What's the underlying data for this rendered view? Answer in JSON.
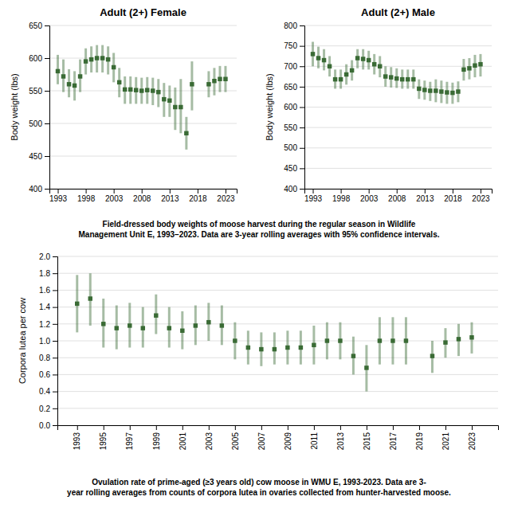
{
  "chart_data": [
    {
      "type": "scatter",
      "title": "Adult (2+) Female",
      "y_label": "Body weight (lbs)",
      "x": [
        1993,
        1994,
        1995,
        1996,
        1997,
        1998,
        1999,
        2000,
        2001,
        2002,
        2003,
        2004,
        2005,
        2006,
        2007,
        2008,
        2009,
        2010,
        2011,
        2012,
        2013,
        2014,
        2015,
        2016,
        2017,
        2020,
        2021,
        2022,
        2023
      ],
      "series": [
        {
          "color": "#3a6b35",
          "marker": "square",
          "values": [
            580,
            572,
            560,
            558,
            572,
            595,
            598,
            600,
            600,
            598,
            586,
            563,
            552,
            552,
            551,
            550,
            551,
            550,
            548,
            537,
            535,
            525,
            525,
            485,
            560,
            560,
            565,
            568,
            568
          ],
          "lo": [
            560,
            548,
            540,
            535,
            548,
            575,
            578,
            578,
            578,
            575,
            563,
            540,
            530,
            530,
            530,
            530,
            530,
            528,
            525,
            510,
            510,
            490,
            485,
            460,
            520,
            540,
            543,
            548,
            548
          ],
          "hi": [
            605,
            598,
            583,
            580,
            598,
            615,
            618,
            620,
            620,
            618,
            608,
            585,
            572,
            572,
            571,
            570,
            571,
            570,
            568,
            562,
            558,
            555,
            568,
            510,
            595,
            580,
            585,
            588,
            588
          ]
        }
      ],
      "xlim": [
        1991.5,
        2025
      ],
      "xticks": [
        1993,
        1998,
        2003,
        2008,
        2013,
        2018,
        2023
      ],
      "ylim": [
        400,
        650
      ],
      "yticks": [
        400,
        450,
        500,
        550,
        600,
        650
      ],
      "grid": true
    },
    {
      "type": "scatter",
      "title": "Adult (2+) Male",
      "y_label": "Body weight (lbs)",
      "x": [
        1993,
        1994,
        1995,
        1996,
        1997,
        1998,
        1999,
        2000,
        2001,
        2002,
        2003,
        2004,
        2005,
        2006,
        2007,
        2008,
        2009,
        2010,
        2011,
        2012,
        2013,
        2014,
        2015,
        2016,
        2017,
        2018,
        2019,
        2020,
        2021,
        2022,
        2023
      ],
      "series": [
        {
          "color": "#3a6b35",
          "marker": "square",
          "values": [
            730,
            720,
            715,
            700,
            668,
            668,
            680,
            690,
            720,
            718,
            715,
            705,
            700,
            675,
            673,
            670,
            668,
            668,
            668,
            645,
            642,
            640,
            640,
            638,
            636,
            635,
            638,
            692,
            695,
            702,
            705
          ],
          "lo": [
            700,
            695,
            690,
            675,
            645,
            645,
            655,
            665,
            695,
            692,
            692,
            680,
            673,
            650,
            648,
            647,
            645,
            645,
            645,
            620,
            618,
            615,
            612,
            610,
            608,
            608,
            612,
            665,
            668,
            673,
            675
          ],
          "hi": [
            760,
            748,
            742,
            725,
            692,
            692,
            705,
            715,
            742,
            742,
            738,
            730,
            725,
            700,
            698,
            695,
            692,
            692,
            692,
            668,
            665,
            662,
            668,
            665,
            662,
            660,
            663,
            718,
            720,
            728,
            730
          ]
        }
      ],
      "xlim": [
        1991.5,
        2025
      ],
      "xticks": [
        1993,
        1998,
        2003,
        2008,
        2013,
        2018,
        2023
      ],
      "ylim": [
        400,
        800
      ],
      "yticks": [
        400,
        450,
        500,
        550,
        600,
        650,
        700,
        750,
        800
      ],
      "grid": true,
      "annotations": [
        "Field-dressed body weights of moose harvest during the regular season in Wildlife\nManagement Unit E, 1993–2023. Data are 3-year rolling averages with 95% confidence intervals."
      ]
    },
    {
      "type": "scatter",
      "y_label": "Corpora lutea per cow",
      "x": [
        1993,
        1994,
        1995,
        1996,
        1997,
        1998,
        1999,
        2000,
        2001,
        2002,
        2003,
        2004,
        2005,
        2006,
        2007,
        2008,
        2009,
        2010,
        2011,
        2012,
        2013,
        2014,
        2015,
        2016,
        2017,
        2018,
        2020,
        2021,
        2022,
        2023
      ],
      "series": [
        {
          "color": "#3a6b35",
          "marker": "square",
          "values": [
            1.44,
            1.5,
            1.2,
            1.15,
            1.18,
            1.15,
            1.3,
            1.15,
            1.12,
            1.18,
            1.22,
            1.18,
            1.0,
            0.92,
            0.9,
            0.9,
            0.92,
            0.92,
            0.95,
            1.0,
            1.0,
            0.82,
            0.68,
            1.0,
            1.0,
            1.0,
            0.82,
            0.98,
            1.02,
            1.04
          ],
          "lo": [
            1.1,
            1.18,
            0.92,
            0.9,
            0.92,
            0.92,
            1.08,
            0.92,
            0.9,
            0.95,
            1.0,
            0.95,
            0.78,
            0.72,
            0.7,
            0.72,
            0.72,
            0.72,
            0.72,
            0.78,
            0.78,
            0.6,
            0.4,
            0.72,
            0.72,
            0.72,
            0.62,
            0.8,
            0.82,
            0.85
          ],
          "hi": [
            1.78,
            1.8,
            1.5,
            1.42,
            1.45,
            1.4,
            1.55,
            1.4,
            1.35,
            1.42,
            1.45,
            1.42,
            1.22,
            1.12,
            1.1,
            1.1,
            1.12,
            1.12,
            1.18,
            1.22,
            1.22,
            1.05,
            0.95,
            1.28,
            1.28,
            1.28,
            1.0,
            1.15,
            1.2,
            1.22
          ]
        }
      ],
      "xlim": [
        1991.5,
        2025
      ],
      "xticks": [
        1993,
        1995,
        1997,
        1999,
        2001,
        2003,
        2005,
        2007,
        2009,
        2011,
        2013,
        2015,
        2017,
        2019,
        2021,
        2023
      ],
      "ylim": [
        0.0,
        2.0
      ],
      "yticks": [
        {
          "value": 0.0,
          "label": "0.0"
        },
        0.2,
        0.4,
        0.6,
        0.8,
        {
          "value": 1.0,
          "label": "1.0"
        },
        1.2,
        1.4,
        1.6,
        1.8,
        {
          "value": 2.0,
          "label": "2.0"
        }
      ],
      "grid": true,
      "annotations": [
        "Ovulation rate of prime-aged (≥3 years old) cow moose in WMU E, 1993-2023. Data are 3-\nyear rolling averages from counts of corpora lutea in ovaries collected from hunter-harvested moose."
      ]
    }
  ]
}
